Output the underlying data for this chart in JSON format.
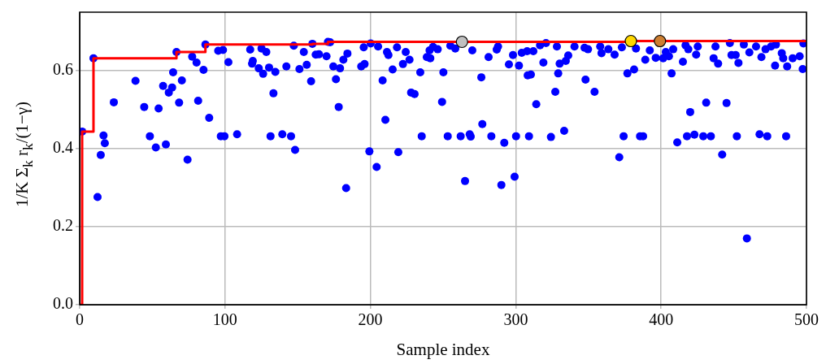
{
  "chart_data": {
    "type": "scatter",
    "xlabel": "Sample index",
    "ylabel": "1/K Σ$_{k}$ r$_{k}$/(1−γ)",
    "xlim": [
      0,
      500
    ],
    "ylim": [
      0,
      0.75
    ],
    "xticks": [
      0,
      100,
      200,
      300,
      400,
      500
    ],
    "yticks": [
      {
        "value": 0,
        "label": "0.0"
      },
      {
        "value": 0.2,
        "label": "0.2"
      },
      {
        "value": 0.4,
        "label": "0.4"
      },
      {
        "value": 0.6,
        "label": "0.6"
      }
    ],
    "grid": true,
    "legend": false,
    "series": [
      {
        "type": "scatter",
        "marker": "circle",
        "color": "#0000ff",
        "x": [
          9.5,
          1.7,
          16.4,
          17.3,
          14.5,
          12.3,
          23.5,
          38.4,
          44.4,
          54.3,
          48.3,
          52.4,
          59.3,
          57.4,
          61.3,
          63.6,
          64.3,
          70.3,
          68.4,
          66.6,
          74.2,
          77.4,
          80.4,
          81.5,
          85.2,
          86.5,
          89.1,
          95.3,
          98.6,
          97.1,
          99.6,
          102.3,
          108.3,
          117.3,
          119.1,
          118.6,
          125.1,
          128.4,
          123.2,
          126.2,
          130.3,
          134.6,
          133.3,
          131.3,
          139.4,
          145.4,
          148.2,
          142.2,
          147.3,
          154.2,
          151.2,
          156.2,
          159.2,
          160.1,
          162.4,
          164.6,
          169.8,
          170.8,
          172.3,
          184.2,
          181.4,
          174.5,
          179.1,
          176.3,
          178.2,
          183.3,
          193.7,
          196,
          195.4,
          200.2,
          205.3,
          199.3,
          204.3,
          208.4,
          210.3,
          211.4,
          212.4,
          215.3,
          218.3,
          219.2,
          222.4,
          224.3,
          226.9,
          228,
          230.4,
          234.3,
          235.3,
          238.8,
          241.2,
          240.7,
          243.1,
          246.3,
          250.2,
          249.3,
          253.2,
          255,
          258.4,
          262.1,
          268.3,
          269,
          265.1,
          270.1,
          276.3,
          277,
          281.3,
          283.2,
          286.9,
          287.8,
          292.1,
          290.1,
          298.1,
          295.3,
          300.2,
          299.2,
          302.2,
          304.1,
          307.8,
          312.1,
          308.2,
          310.4,
          309.1,
          314.1,
          319,
          316.7,
          320.8,
          324.2,
          327.2,
          329.2,
          330.2,
          333.3,
          328.3,
          334.4,
          336.1,
          340.4,
          347.3,
          349.7,
          348,
          354.2,
          359,
          358.1,
          363.7,
          368,
          373,
          371.2,
          374.2,
          376.8,
          381.4,
          382.7,
          385.5,
          387.6,
          389.1,
          392.2,
          396.3,
          401.4,
          403.2,
          405.4,
          408.3,
          407.2,
          411.1,
          415,
          418.7,
          416.8,
          424.1,
          425.2,
          420,
          417.8,
          422.9,
          429,
          434.2,
          431,
          436.1,
          439.2,
          437.4,
          442,
          445,
          447.3,
          448.4,
          451.3,
          453.2,
          452.1,
          456.9,
          460.7,
          459,
          465.3,
          469,
          471.8,
          467.7,
          473,
          475.6,
          479,
          483,
          484,
          478.4,
          486.7,
          490.5,
          495.3,
          486,
          497.4,
          497.9
        ],
        "values": [
          0.632,
          0.444,
          0.434,
          0.414,
          0.384,
          0.276,
          0.519,
          0.574,
          0.507,
          0.503,
          0.432,
          0.403,
          0.411,
          0.561,
          0.544,
          0.557,
          0.596,
          0.575,
          0.518,
          0.648,
          0.372,
          0.636,
          0.621,
          0.523,
          0.602,
          0.667,
          0.479,
          0.651,
          0.653,
          0.432,
          0.432,
          0.622,
          0.437,
          0.654,
          0.625,
          0.618,
          0.657,
          0.648,
          0.606,
          0.592,
          0.608,
          0.597,
          0.542,
          0.432,
          0.437,
          0.432,
          0.397,
          0.611,
          0.664,
          0.648,
          0.604,
          0.615,
          0.573,
          0.669,
          0.641,
          0.642,
          0.637,
          0.674,
          0.673,
          0.644,
          0.628,
          0.611,
          0.606,
          0.578,
          0.507,
          0.299,
          0.611,
          0.617,
          0.66,
          0.67,
          0.662,
          0.393,
          0.353,
          0.575,
          0.474,
          0.648,
          0.64,
          0.603,
          0.66,
          0.391,
          0.617,
          0.648,
          0.628,
          0.544,
          0.54,
          0.596,
          0.432,
          0.635,
          0.632,
          0.652,
          0.661,
          0.655,
          0.596,
          0.52,
          0.432,
          0.664,
          0.657,
          0.432,
          0.437,
          0.431,
          0.317,
          0.652,
          0.583,
          0.463,
          0.635,
          0.432,
          0.654,
          0.662,
          0.415,
          0.307,
          0.64,
          0.616,
          0.432,
          0.328,
          0.613,
          0.646,
          0.65,
          0.65,
          0.588,
          0.59,
          0.432,
          0.514,
          0.621,
          0.665,
          0.671,
          0.43,
          0.546,
          0.593,
          0.618,
          0.446,
          0.662,
          0.625,
          0.639,
          0.662,
          0.659,
          0.655,
          0.577,
          0.546,
          0.645,
          0.662,
          0.655,
          0.641,
          0.66,
          0.378,
          0.432,
          0.593,
          0.603,
          0.657,
          0.432,
          0.432,
          0.628,
          0.652,
          0.633,
          0.632,
          0.648,
          0.637,
          0.655,
          0.593,
          0.416,
          0.623,
          0.655,
          0.665,
          0.641,
          0.662,
          0.494,
          0.432,
          0.436,
          0.432,
          0.432,
          0.518,
          0.632,
          0.618,
          0.662,
          0.385,
          0.517,
          0.671,
          0.64,
          0.64,
          0.62,
          0.432,
          0.667,
          0.647,
          0.17,
          0.662,
          0.635,
          0.655,
          0.437,
          0.432,
          0.662,
          0.667,
          0.645,
          0.632,
          0.613,
          0.611,
          0.632,
          0.637,
          0.432,
          0.604,
          0.67
        ]
      },
      {
        "type": "step",
        "color": "#ff0000",
        "x": [
          0,
          1.7,
          9.5,
          66.6,
          86.5,
          160.1,
          170.8,
          379.2,
          500
        ],
        "values": [
          0,
          0.444,
          0.632,
          0.648,
          0.667,
          0.669,
          0.674,
          0.676,
          0.676
        ]
      },
      {
        "type": "scatter",
        "marker": "circle",
        "color": "#c0c0c0",
        "x": [
          263
        ],
        "values": [
          0.674
        ]
      },
      {
        "type": "scatter",
        "marker": "circle",
        "color": "#ffd700",
        "x": [
          379.2
        ],
        "values": [
          0.676
        ]
      },
      {
        "type": "scatter",
        "marker": "circle",
        "color": "#cd7f32",
        "x": [
          399.2
        ],
        "values": [
          0.676
        ]
      }
    ]
  }
}
